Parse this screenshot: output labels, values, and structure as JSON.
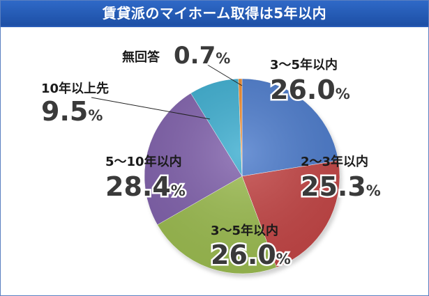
{
  "title": "賃貸派のマイホーム取得は5年以内",
  "chart_data": {
    "type": "pie",
    "title": "賃貸派のマイホーム取得は5年以内",
    "slices": [
      {
        "label": "3～5年以内",
        "value": 26.0,
        "display": "26.0",
        "color": "#4d7ccc"
      },
      {
        "label": "2～3年以内",
        "value": 25.3,
        "display": "25.3",
        "color": "#c44747"
      },
      {
        "label": "3～5年以内",
        "value": 26.0,
        "display": "26.0",
        "color": "#9dbd52"
      },
      {
        "label": "5～10年以内",
        "value": 28.4,
        "display": "28.4",
        "color": "#8263ad"
      },
      {
        "label": "10年以上先",
        "value": 9.5,
        "display": "9.5",
        "color": "#3eaed0"
      },
      {
        "label": "無回答",
        "value": 0.7,
        "display": "0.7",
        "color": "#ef8a2c"
      }
    ],
    "unit": "%"
  }
}
